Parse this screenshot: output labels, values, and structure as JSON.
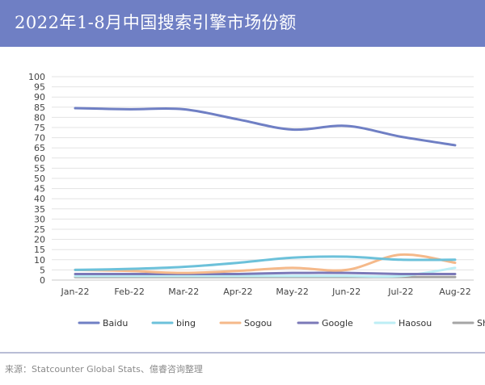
{
  "header": {
    "title": "2022年1-8月中国搜索引擎市场份额"
  },
  "footer": {
    "source": "来源：Statcounter Global Stats、億睿咨询整理"
  },
  "colors": {
    "title_bar": "#6f7fc4",
    "grid": "#e3e3e3"
  },
  "chart_data": {
    "type": "line",
    "categories": [
      "Jan-22",
      "Feb-22",
      "Mar-22",
      "Apr-22",
      "May-22",
      "Jun-22",
      "Jul-22",
      "Aug-22"
    ],
    "ylim": [
      0,
      100
    ],
    "yticks": [
      0,
      5,
      10,
      15,
      20,
      25,
      30,
      35,
      40,
      45,
      50,
      55,
      60,
      65,
      70,
      75,
      80,
      85,
      90,
      95,
      100
    ],
    "grid": true,
    "legend": "bottom",
    "series": [
      {
        "name": "Baidu",
        "color": "#6f7fc4",
        "values": [
          84.5,
          84.0,
          84.0,
          79.0,
          74.0,
          75.8,
          70.5,
          66.3
        ]
      },
      {
        "name": "bing",
        "color": "#6cc1da",
        "values": [
          5.0,
          5.5,
          6.5,
          8.5,
          11.0,
          11.5,
          10.0,
          10.0
        ]
      },
      {
        "name": "Sogou",
        "color": "#f5b98a",
        "values": [
          5.0,
          4.5,
          3.5,
          4.5,
          6.0,
          5.0,
          12.5,
          8.5
        ]
      },
      {
        "name": "Google",
        "color": "#7b79b8",
        "values": [
          3.0,
          3.0,
          3.0,
          3.0,
          3.5,
          3.5,
          3.0,
          3.0
        ]
      },
      {
        "name": "Haosou",
        "color": "#bdeef5",
        "values": [
          2.0,
          2.0,
          2.0,
          2.0,
          2.0,
          2.0,
          2.0,
          6.0
        ]
      },
      {
        "name": "Shenma",
        "color": "#a5a5a5",
        "values": [
          1.5,
          1.5,
          1.5,
          1.5,
          1.5,
          1.5,
          1.5,
          1.5
        ]
      }
    ]
  }
}
